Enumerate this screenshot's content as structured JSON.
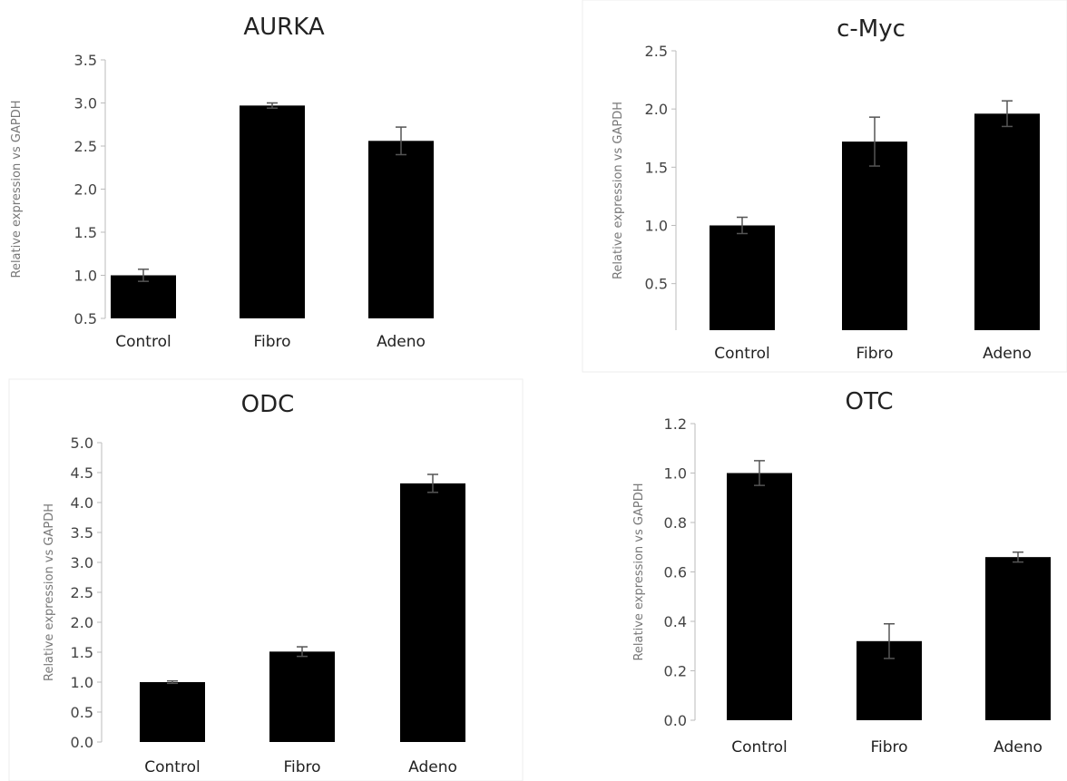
{
  "chart_data": [
    {
      "type": "bar",
      "title": "AURKA",
      "ylabel": "Relative expression vs GAPDH",
      "categories": [
        "Control",
        "Fibro",
        "Adeno"
      ],
      "values": [
        1.0,
        2.97,
        2.56
      ],
      "errors": [
        0.07,
        0.03,
        0.16
      ],
      "ylim": [
        0.5,
        3.5
      ],
      "yticks": [
        "0.5",
        "1.0",
        "1.5",
        "2.0",
        "2.5",
        "3.0",
        "3.5"
      ],
      "color": "#000000",
      "grid": false
    },
    {
      "type": "bar",
      "title": "c-Myc",
      "ylabel": "Relative expression vs GAPDH",
      "categories": [
        "Control",
        "Fibro",
        "Adeno"
      ],
      "values": [
        1.0,
        1.72,
        1.96
      ],
      "errors": [
        0.07,
        0.21,
        0.11
      ],
      "ylim": [
        0.1,
        2.5
      ],
      "yticks": [
        "0.5",
        "1.0",
        "1.5",
        "2.0",
        "2.5"
      ],
      "color": "#000000",
      "grid": false
    },
    {
      "type": "bar",
      "title": "ODC",
      "ylabel": "Relative expression vs GAPDH",
      "categories": [
        "Control",
        "Fibro",
        "Adeno"
      ],
      "values": [
        1.0,
        1.51,
        4.32
      ],
      "errors": [
        0.02,
        0.08,
        0.15
      ],
      "ylim": [
        0.0,
        5.0
      ],
      "yticks": [
        "0.0",
        "0.5",
        "1.0",
        "1.5",
        "2.0",
        "2.5",
        "3.0",
        "3.5",
        "4.0",
        "4.5",
        "5.0"
      ],
      "color": "#000000",
      "grid": false
    },
    {
      "type": "bar",
      "title": "OTC",
      "ylabel": "Relative expression vs GAPDH",
      "categories": [
        "Control",
        "Fibro",
        "Adeno"
      ],
      "values": [
        1.0,
        0.32,
        0.66
      ],
      "errors": [
        0.05,
        0.07,
        0.02
      ],
      "ylim": [
        0.0,
        1.2
      ],
      "yticks": [
        "0.0",
        "0.2",
        "0.4",
        "0.6",
        "0.8",
        "1.0",
        "1.2"
      ],
      "color": "#000000",
      "grid": false
    }
  ]
}
